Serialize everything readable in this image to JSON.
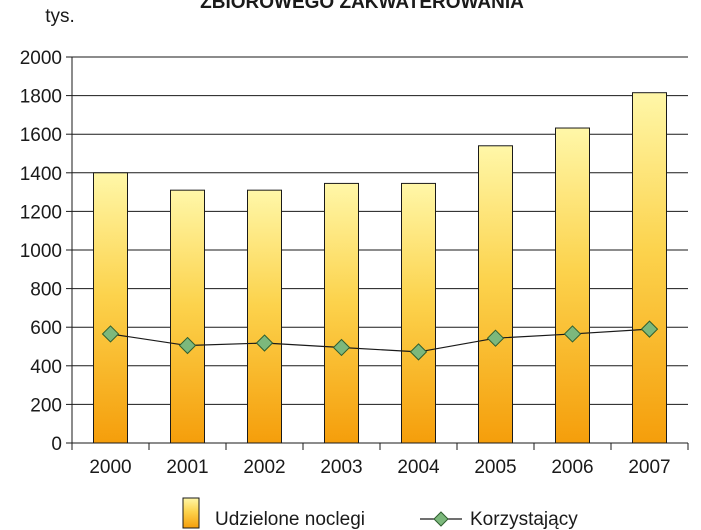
{
  "chart_data": {
    "type": "bar",
    "title": "ZBIOROWEGO ZAKWATEROWANIA",
    "ylabel": "tys.",
    "xlabel": "",
    "categories": [
      "2000",
      "2001",
      "2002",
      "2003",
      "2004",
      "2005",
      "2006",
      "2007"
    ],
    "ylim": [
      0,
      2000
    ],
    "yticks": [
      "0",
      "200",
      "400",
      "600",
      "800",
      "1000",
      "1200",
      "1400",
      "1600",
      "1800",
      "2000"
    ],
    "grid": true,
    "legend_position": "bottom",
    "series": [
      {
        "name": "Udzielone noclegi",
        "type": "bar",
        "values": [
          1400,
          1310,
          1310,
          1345,
          1345,
          1540,
          1632,
          1815
        ]
      },
      {
        "name": "Korzystający",
        "type": "line",
        "values": [
          565,
          505,
          518,
          495,
          472,
          543,
          565,
          590
        ]
      }
    ],
    "colors": {
      "bar_top": "#fff7a8",
      "bar_mid": "#fcd34d",
      "bar_bottom": "#f59e0b",
      "bar_stroke": "#1a1a1a",
      "line": "#1a1a1a",
      "marker_fill": "#7cb87c",
      "marker_stroke": "#2f5e2f",
      "grid": "#1a1a1a",
      "axis": "#1a1a1a",
      "text": "#1a1a1a"
    }
  }
}
